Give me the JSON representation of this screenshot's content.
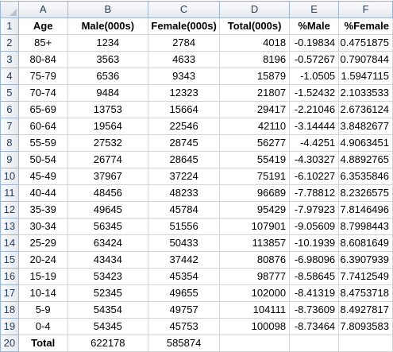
{
  "columns": [
    "A",
    "B",
    "C",
    "D",
    "E",
    "F"
  ],
  "headers": [
    "Age",
    "Male(000s)",
    "Female(000s)",
    "Total(000s)",
    "%Male",
    "%Female"
  ],
  "rows": [
    [
      "85+",
      "1234",
      "2784",
      "4018",
      "-0.19834",
      "0.4751875"
    ],
    [
      "80-84",
      "3563",
      "4633",
      "8196",
      "-0.57267",
      "0.7907844"
    ],
    [
      "75-79",
      "6536",
      "9343",
      "15879",
      "-1.0505",
      "1.5947115"
    ],
    [
      "70-74",
      "9484",
      "12323",
      "21807",
      "-1.52432",
      "2.1033533"
    ],
    [
      "65-69",
      "13753",
      "15664",
      "29417",
      "-2.21046",
      "2.6736124"
    ],
    [
      "60-64",
      "19564",
      "22546",
      "42110",
      "-3.14444",
      "3.8482677"
    ],
    [
      "55-59",
      "27532",
      "28745",
      "56277",
      "-4.4251",
      "4.9063451"
    ],
    [
      "50-54",
      "26774",
      "28645",
      "55419",
      "-4.30327",
      "4.8892765"
    ],
    [
      "45-49",
      "37967",
      "37224",
      "75191",
      "-6.10227",
      "6.3535846"
    ],
    [
      "40-44",
      "48456",
      "48233",
      "96689",
      "-7.78812",
      "8.2326575"
    ],
    [
      "35-39",
      "49645",
      "45784",
      "95429",
      "-7.97923",
      "7.8146496"
    ],
    [
      "30-34",
      "56345",
      "51556",
      "107901",
      "-9.05609",
      "8.7998443"
    ],
    [
      "25-29",
      "63424",
      "50433",
      "113857",
      "-10.1939",
      "8.6081649"
    ],
    [
      "20-24",
      "43434",
      "37442",
      "80876",
      "-6.98096",
      "6.3907939"
    ],
    [
      "15-19",
      "53423",
      "45354",
      "98777",
      "-8.58645",
      "7.7412549"
    ],
    [
      "10-14",
      "52345",
      "49655",
      "102000",
      "-8.41319",
      "8.4753718"
    ],
    [
      "5-9",
      "54354",
      "49757",
      "104111",
      "-8.73609",
      "8.4927817"
    ],
    [
      "0-4",
      "54345",
      "45753",
      "100098",
      "-8.73464",
      "7.8093583"
    ]
  ],
  "total_row": [
    "Total",
    "622178",
    "585874",
    "",
    "",
    ""
  ],
  "row_numbers": [
    "1",
    "2",
    "3",
    "4",
    "5",
    "6",
    "7",
    "8",
    "9",
    "10",
    "11",
    "12",
    "13",
    "14",
    "15",
    "16",
    "17",
    "18",
    "19",
    "20"
  ],
  "colors": {
    "header_bg": "#e4e8ee",
    "header_border": "#9eb6ce",
    "header_text": "#27405d",
    "gridline": "#d4d4d4"
  }
}
